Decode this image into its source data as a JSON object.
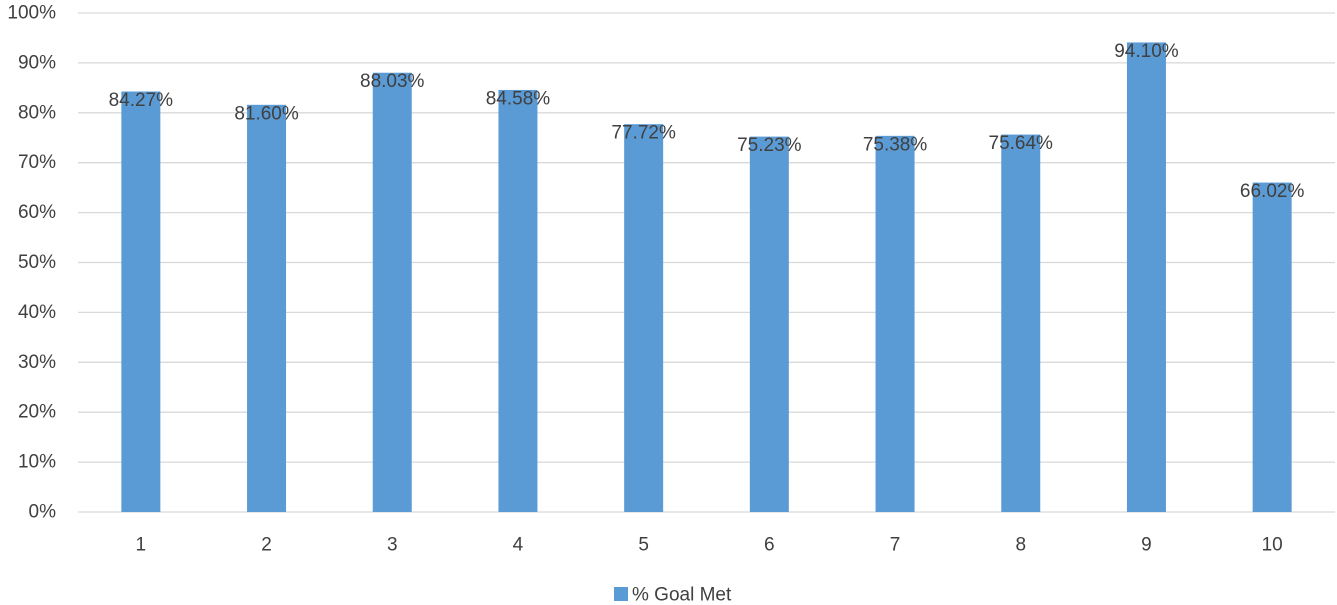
{
  "chart_data": {
    "type": "bar",
    "categories": [
      "1",
      "2",
      "3",
      "4",
      "5",
      "6",
      "7",
      "8",
      "9",
      "10"
    ],
    "series": [
      {
        "name": "% Goal Met",
        "values": [
          84.27,
          81.6,
          88.03,
          84.58,
          77.72,
          75.23,
          75.38,
          75.64,
          94.1,
          66.02
        ],
        "data_labels": [
          "84.27%",
          "81.60%",
          "88.03%",
          "84.58%",
          "77.72%",
          "75.23%",
          "75.38%",
          "75.64%",
          "94.10%",
          "66.02%"
        ],
        "color": "#5B9BD5"
      }
    ],
    "y_ticks": [
      "0%",
      "10%",
      "20%",
      "30%",
      "40%",
      "50%",
      "60%",
      "70%",
      "80%",
      "90%",
      "100%"
    ],
    "ylim": [
      0,
      100
    ],
    "grid": true,
    "legend_position": "bottom",
    "colors": {
      "gridline": "#D9D9D9",
      "text": "#404040",
      "bar": "#5B9BD5"
    }
  }
}
